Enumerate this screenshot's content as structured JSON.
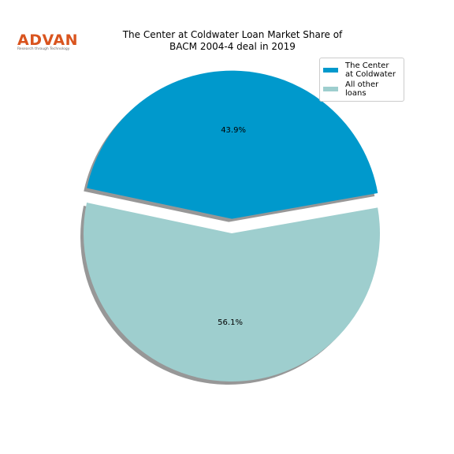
{
  "logo": {
    "name": "ADVAN",
    "tagline": "Research through Technology"
  },
  "chart_data": {
    "type": "pie",
    "title": "The Center at Coldwater Loan Market Share of\nBACM 2004-4 deal in 2019",
    "categories": [
      "The Center\nat Coldwater",
      "All other loans"
    ],
    "values": [
      43.9,
      56.1
    ],
    "value_labels": [
      "43.9%",
      "56.1%"
    ],
    "colors": [
      "#0099cc",
      "#9ecece"
    ],
    "legend": "upper right",
    "shadow": true
  }
}
